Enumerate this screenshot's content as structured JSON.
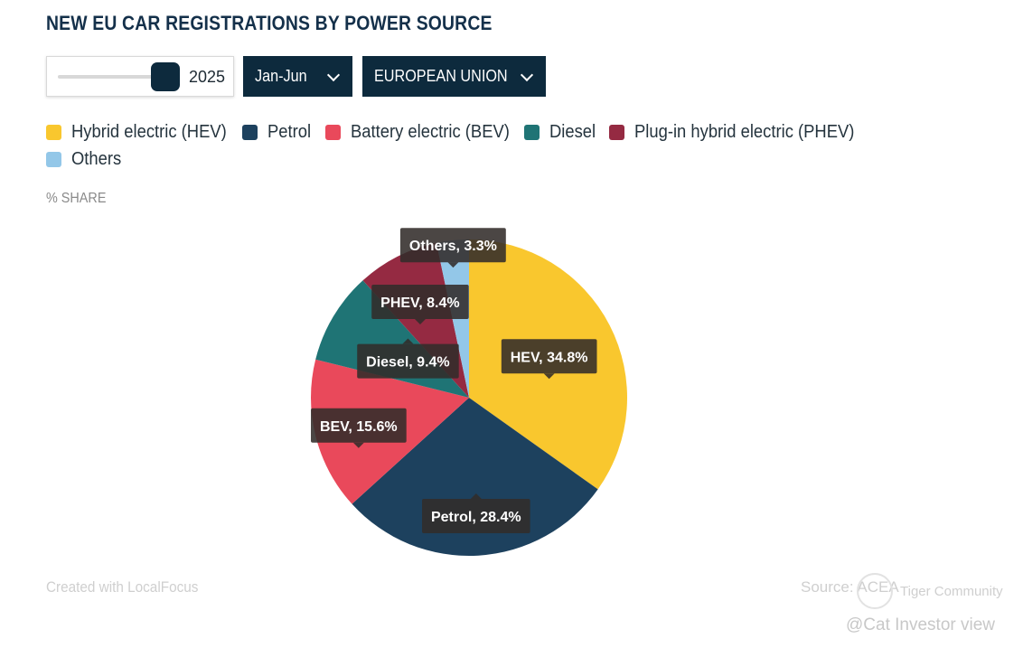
{
  "title": "NEW EU CAR REGISTRATIONS BY POWER SOURCE",
  "controls": {
    "year": "2025",
    "year_slider_position": 1.0,
    "period": "Jan-Jun",
    "region": "EUROPEAN UNION"
  },
  "legend": [
    {
      "label": "Hybrid electric (HEV)",
      "color": "#f9c72e"
    },
    {
      "label": "Petrol",
      "color": "#1d415e"
    },
    {
      "label": "Battery electric (BEV)",
      "color": "#e9495b"
    },
    {
      "label": "Diesel",
      "color": "#1f7475"
    },
    {
      "label": "Plug-in hybrid electric (PHEV)",
      "color": "#952a42"
    },
    {
      "label": "Others",
      "color": "#93c7e8"
    }
  ],
  "share_label": "% SHARE",
  "chart_data": {
    "type": "pie",
    "title": "NEW EU CAR REGISTRATIONS BY POWER SOURCE",
    "unit": "%",
    "slices": [
      {
        "name": "Hybrid electric (HEV)",
        "short": "HEV",
        "value": 34.8,
        "label": "HEV, 34.8%",
        "color": "#f9c72e"
      },
      {
        "name": "Petrol",
        "short": "Petrol",
        "value": 28.4,
        "label": "Petrol, 28.4%",
        "color": "#1d415e"
      },
      {
        "name": "Battery electric (BEV)",
        "short": "BEV",
        "value": 15.6,
        "label": "BEV, 15.6%",
        "color": "#e9495b"
      },
      {
        "name": "Diesel",
        "short": "Diesel",
        "value": 9.4,
        "label": "Diesel, 9.4%",
        "color": "#1f7475"
      },
      {
        "name": "Plug-in hybrid electric (PHEV)",
        "short": "PHEV",
        "value": 8.4,
        "label": "PHEV, 8.4%",
        "color": "#952a42"
      },
      {
        "name": "Others",
        "short": "Others",
        "value": 3.3,
        "label": "Others, 3.3%",
        "color": "#93c7e8"
      }
    ]
  },
  "footer": {
    "created_with": "Created with LocalFocus",
    "source": "Source: ACEA"
  },
  "watermark": {
    "text": "Tiger Community",
    "user": "@Cat Investor view"
  }
}
